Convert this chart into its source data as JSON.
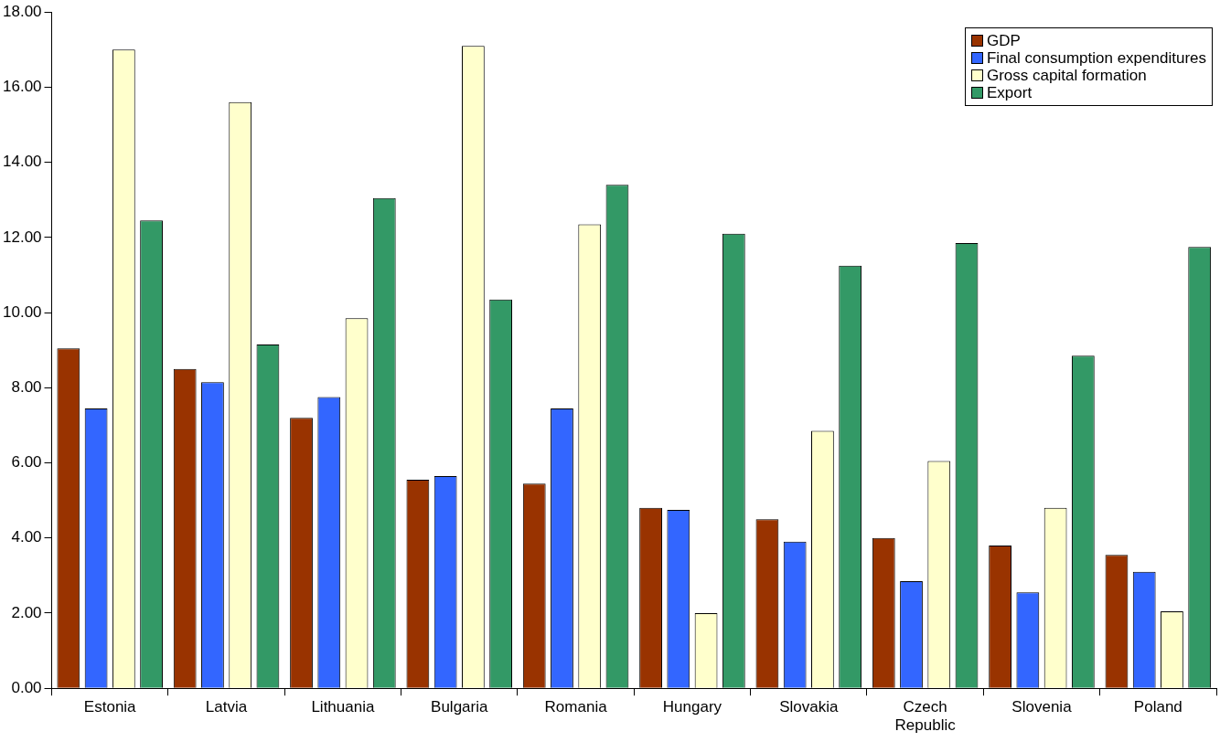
{
  "chart_data": {
    "type": "bar",
    "categories": [
      "Estonia",
      "Latvia",
      "Lithuania",
      "Bulgaria",
      "Romania",
      "Hungary",
      "Slovakia",
      "Czech Republic",
      "Slovenia",
      "Poland"
    ],
    "series": [
      {
        "name": "GDP",
        "color": "#993300",
        "values": [
          9.05,
          8.5,
          7.2,
          5.55,
          5.45,
          4.8,
          4.5,
          4.0,
          3.8,
          3.55
        ]
      },
      {
        "name": "Final consumption expenditures",
        "color": "#3366ff",
        "values": [
          7.45,
          8.15,
          7.75,
          5.65,
          7.45,
          4.75,
          3.9,
          2.85,
          2.55,
          3.1
        ]
      },
      {
        "name": "Gross capital formation",
        "color": "#ffffcc",
        "values": [
          17.0,
          15.6,
          9.85,
          17.1,
          12.35,
          2.0,
          6.85,
          6.05,
          4.8,
          2.05
        ]
      },
      {
        "name": "Export",
        "color": "#339966",
        "values": [
          12.45,
          9.15,
          13.05,
          10.35,
          13.4,
          12.1,
          11.25,
          11.85,
          8.85,
          11.75
        ]
      }
    ],
    "ylim": [
      0,
      18
    ],
    "yticks": [
      {
        "value": 0,
        "label": "0.00"
      },
      {
        "value": 2,
        "label": "2.00"
      },
      {
        "value": 4,
        "label": "4.00"
      },
      {
        "value": 6,
        "label": "6.00"
      },
      {
        "value": 8,
        "label": "8.00"
      },
      {
        "value": 10,
        "label": "10.00"
      },
      {
        "value": 12,
        "label": "12.00"
      },
      {
        "value": 14,
        "label": "14.00"
      },
      {
        "value": 16,
        "label": "16.00"
      },
      {
        "value": 18,
        "label": "18.00"
      }
    ],
    "grid": false,
    "legend": "top right"
  }
}
